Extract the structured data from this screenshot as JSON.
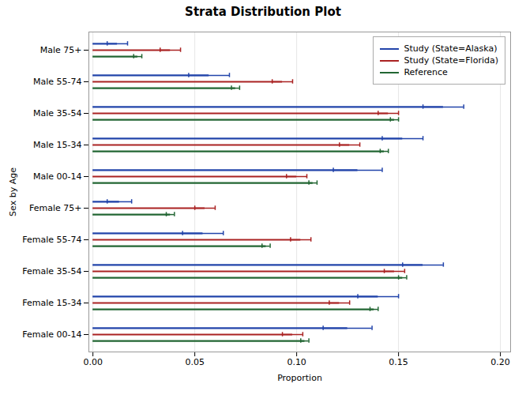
{
  "chart_data": {
    "type": "bar",
    "orientation": "horizontal",
    "title": "Strata Distribution Plot",
    "xlabel": "Proportion",
    "ylabel": "Sex by Age",
    "categories": [
      "Male 75+",
      "Male 55-74",
      "Male 35-54",
      "Male 15-34",
      "Male 00-14",
      "Female 75+",
      "Female 55-74",
      "Female 35-54",
      "Female 15-34",
      "Female 00-14"
    ],
    "series": [
      {
        "name": "Study (State=Alaska)",
        "color": "#2244aa",
        "values": [
          0.012,
          0.057,
          0.172,
          0.152,
          0.13,
          0.013,
          0.054,
          0.162,
          0.14,
          0.125
        ],
        "ci_low": [
          0.007,
          0.047,
          0.162,
          0.142,
          0.118,
          0.007,
          0.044,
          0.152,
          0.13,
          0.113
        ],
        "ci_high": [
          0.017,
          0.067,
          0.182,
          0.162,
          0.142,
          0.019,
          0.064,
          0.172,
          0.15,
          0.137
        ]
      },
      {
        "name": "Study (State=Florida)",
        "color": "#aa2222",
        "values": [
          0.038,
          0.093,
          0.145,
          0.126,
          0.1,
          0.055,
          0.102,
          0.148,
          0.121,
          0.098
        ],
        "ci_low": [
          0.033,
          0.088,
          0.14,
          0.121,
          0.095,
          0.05,
          0.097,
          0.143,
          0.116,
          0.093
        ],
        "ci_high": [
          0.043,
          0.098,
          0.15,
          0.131,
          0.105,
          0.06,
          0.107,
          0.153,
          0.126,
          0.103
        ]
      },
      {
        "name": "Reference",
        "color": "#226633",
        "values": [
          0.022,
          0.07,
          0.148,
          0.143,
          0.108,
          0.038,
          0.085,
          0.152,
          0.138,
          0.104
        ],
        "ci_low": [
          0.02,
          0.068,
          0.146,
          0.141,
          0.106,
          0.036,
          0.083,
          0.15,
          0.136,
          0.102
        ],
        "ci_high": [
          0.024,
          0.072,
          0.15,
          0.145,
          0.11,
          0.04,
          0.087,
          0.154,
          0.14,
          0.106
        ]
      }
    ],
    "xlim": [
      -0.002,
      0.205
    ],
    "xticks": [
      {
        "value": 0.0,
        "label": "0.00"
      },
      0.05,
      {
        "value": 0.1,
        "label": "0.10"
      },
      0.15,
      {
        "value": 0.2,
        "label": "0.20"
      }
    ],
    "grid": true,
    "legend": "upper right"
  }
}
